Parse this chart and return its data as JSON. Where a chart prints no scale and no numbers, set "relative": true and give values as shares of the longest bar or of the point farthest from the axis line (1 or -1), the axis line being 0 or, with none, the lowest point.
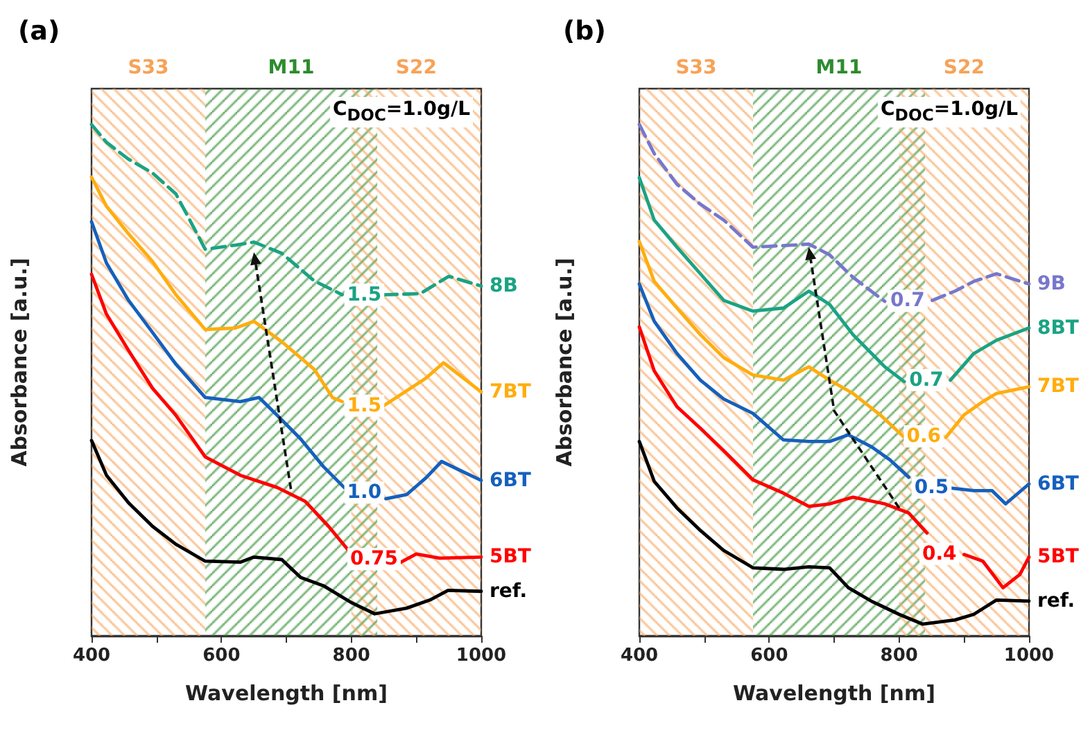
{
  "chart_data": [
    {
      "type": "line",
      "title": "(a)",
      "xlabel": "Wavelength [nm]",
      "ylabel": "Absorbance [a.u.]",
      "relative": true,
      "grid": false,
      "legend": false,
      "marker": "none",
      "xlim": [
        400,
        1000
      ],
      "xticks": [
        400,
        {
          "value": 500,
          "label": null
        },
        600,
        {
          "value": 700,
          "label": null
        },
        800,
        {
          "value": 900,
          "label": null
        },
        1000
      ],
      "bands": [
        {
          "axis": "x",
          "from": 400,
          "to": 575,
          "label": "S33",
          "color": "#f7a257"
        },
        {
          "axis": "x",
          "from": 575,
          "to": 840,
          "label": "M11",
          "color": "#2e8b2e"
        },
        {
          "axis": "x",
          "from": 800,
          "to": 1000,
          "label": "S22",
          "color": "#f7a257"
        }
      ],
      "annotations": [
        "C$_{DOC}$=1.0g/L",
        {
          "text": "1.5",
          "x": 820,
          "y": 0.667
        },
        {
          "text": "1.5",
          "x": 820,
          "y": 0.45
        },
        {
          "text": "1.0",
          "x": 820,
          "y": 0.28
        },
        {
          "text": "0.75",
          "x": 835,
          "y": 0.15
        }
      ],
      "series": [
        {
          "name": "8B",
          "color": "#1aa383",
          "line_style": "dashed",
          "x": [
            400,
            423,
            457,
            494,
            530,
            575,
            622,
            650,
            693,
            743,
            786,
            820,
            850,
            906,
            950,
            1000
          ],
          "values": [
            1.0,
            0.965,
            0.932,
            0.905,
            0.864,
            0.756,
            0.764,
            0.77,
            0.748,
            0.694,
            0.667,
            null,
            0.667,
            0.669,
            0.703,
            0.684
          ]
        },
        {
          "name": "7BT",
          "color": "#ffad0d",
          "x": [
            400,
            423,
            457,
            494,
            530,
            575,
            622,
            650,
            693,
            743,
            771,
            786,
            820,
            850,
            915,
            942,
            1000
          ],
          "values": [
            0.897,
            0.84,
            0.786,
            0.732,
            0.667,
            0.599,
            0.602,
            0.615,
            0.575,
            0.521,
            0.466,
            0.458,
            null,
            0.45,
            0.504,
            0.534,
            0.477
          ]
        },
        {
          "name": "6BT",
          "color": "#1560bd",
          "x": [
            400,
            423,
            457,
            494,
            530,
            575,
            629,
            658,
            686,
            722,
            757,
            789,
            820,
            853,
            885,
            915,
            939,
            970,
            1000
          ],
          "values": [
            0.81,
            0.729,
            0.656,
            0.593,
            0.531,
            0.466,
            0.458,
            0.466,
            0.431,
            0.385,
            0.331,
            0.29,
            null,
            0.268,
            0.276,
            0.309,
            0.341,
            0.322,
            0.304
          ]
        },
        {
          "name": "5BT",
          "color": "#ff0000",
          "x": [
            400,
            423,
            457,
            494,
            530,
            575,
            629,
            686,
            729,
            765,
            797,
            835,
            872,
            900,
            936,
            1000
          ],
          "values": [
            0.707,
            0.629,
            0.558,
            0.484,
            0.431,
            0.35,
            0.314,
            0.29,
            0.263,
            0.214,
            0.165,
            null,
            0.141,
            0.16,
            0.152,
            0.154
          ]
        },
        {
          "name": "ref.",
          "color": "#000000",
          "x": [
            400,
            423,
            457,
            494,
            530,
            575,
            629,
            650,
            693,
            722,
            757,
            800,
            836,
            885,
            921,
            949,
            1000
          ],
          "values": [
            0.382,
            0.314,
            0.26,
            0.214,
            0.179,
            0.146,
            0.144,
            0.154,
            0.149,
            0.114,
            0.098,
            0.065,
            0.043,
            0.054,
            0.07,
            0.089,
            0.087
          ]
        }
      ]
    },
    {
      "type": "line",
      "title": "(b)",
      "xlabel": "Wavelength [nm]",
      "ylabel": "Absorbance [a.u.]",
      "relative": true,
      "grid": false,
      "legend": false,
      "marker": "none",
      "xlim": [
        400,
        1000
      ],
      "xticks": [
        400,
        {
          "value": 500,
          "label": null
        },
        600,
        {
          "value": 700,
          "label": null
        },
        800,
        {
          "value": 900,
          "label": null
        },
        1000
      ],
      "bands": [
        {
          "axis": "x",
          "from": 400,
          "to": 575,
          "label": "S33",
          "color": "#f7a257"
        },
        {
          "axis": "x",
          "from": 575,
          "to": 840,
          "label": "M11",
          "color": "#2e8b2e"
        },
        {
          "axis": "x",
          "from": 800,
          "to": 1000,
          "label": "S22",
          "color": "#f7a257"
        }
      ],
      "annotations": [
        "C$_{DOC}$=1.0g/L",
        {
          "text": "0.7",
          "x": 813,
          "y": 0.655
        },
        {
          "text": "0.7",
          "x": 842,
          "y": 0.5
        },
        {
          "text": "0.6",
          "x": 838,
          "y": 0.39
        },
        {
          "text": "0.5",
          "x": 850,
          "y": 0.29
        },
        {
          "text": "0.4",
          "x": 862,
          "y": 0.16
        }
      ],
      "series": [
        {
          "name": "9B",
          "color": "#7777cc",
          "line_style": "dashed",
          "x": [
            400,
            423,
            458,
            494,
            530,
            575,
            622,
            661,
            693,
            729,
            778,
            813,
            851,
            886,
            915,
            950,
            1000
          ],
          "values": [
            1.0,
            0.943,
            0.883,
            0.844,
            0.813,
            0.76,
            0.763,
            0.766,
            0.745,
            0.701,
            0.654,
            null,
            0.656,
            0.674,
            0.693,
            0.708,
            0.688
          ]
        },
        {
          "name": "8BT",
          "color": "#1aa383",
          "x": [
            400,
            423,
            458,
            494,
            530,
            575,
            622,
            661,
            693,
            729,
            778,
            808,
            842,
            879,
            915,
            950,
            1000
          ],
          "values": [
            0.896,
            0.813,
            0.76,
            0.708,
            0.656,
            0.635,
            0.641,
            0.674,
            0.648,
            0.589,
            0.526,
            0.497,
            null,
            0.5,
            0.552,
            0.578,
            0.602
          ]
        },
        {
          "name": "7BT",
          "color": "#ffad0d",
          "x": [
            400,
            423,
            458,
            494,
            530,
            575,
            622,
            661,
            693,
            729,
            771,
            808,
            838,
            872,
            900,
            929,
            950,
            1000
          ],
          "values": [
            0.771,
            0.693,
            0.641,
            0.589,
            0.544,
            0.51,
            0.5,
            0.526,
            0.5,
            0.474,
            0.432,
            0.388,
            null,
            0.388,
            0.432,
            0.458,
            0.474,
            0.487
          ]
        },
        {
          "name": "6BT",
          "color": "#1560bd",
          "x": [
            400,
            423,
            458,
            494,
            530,
            575,
            622,
            661,
            693,
            722,
            757,
            786,
            815,
            850,
            879,
            915,
            943,
            964,
            1000
          ],
          "values": [
            0.688,
            0.615,
            0.552,
            0.5,
            0.463,
            0.435,
            0.383,
            0.38,
            0.38,
            0.393,
            0.37,
            0.344,
            0.31,
            null,
            0.289,
            0.284,
            0.284,
            0.258,
            0.297
          ]
        },
        {
          "name": "5BT",
          "color": "#ff0000",
          "x": [
            400,
            423,
            458,
            494,
            530,
            575,
            622,
            661,
            693,
            729,
            778,
            815,
            843,
            862,
            900,
            929,
            960,
            986,
            1000
          ],
          "values": [
            0.604,
            0.518,
            0.448,
            0.406,
            0.362,
            0.305,
            0.279,
            0.253,
            0.258,
            0.271,
            0.258,
            0.24,
            0.201,
            null,
            0.159,
            0.146,
            0.094,
            0.12,
            0.154
          ]
        },
        {
          "name": "ref.",
          "color": "#000000",
          "x": [
            400,
            423,
            458,
            494,
            530,
            575,
            622,
            661,
            693,
            722,
            757,
            800,
            836,
            886,
            915,
            950,
            1000
          ],
          "values": [
            0.38,
            0.302,
            0.25,
            0.206,
            0.167,
            0.133,
            0.13,
            0.135,
            0.133,
            0.094,
            0.068,
            0.042,
            0.023,
            0.031,
            0.042,
            0.07,
            0.068
          ]
        }
      ]
    }
  ]
}
